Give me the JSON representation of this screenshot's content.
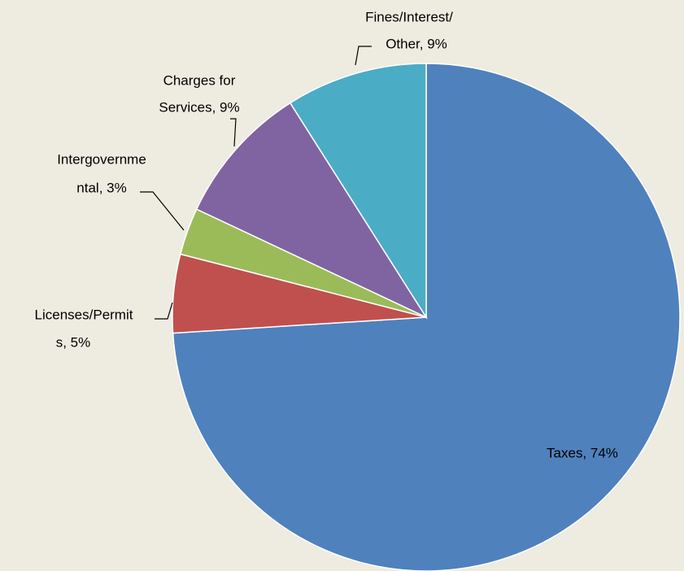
{
  "chart_data": {
    "type": "pie",
    "labels": [
      [
        "Taxes, 74%"
      ],
      [
        "Licenses/Permit",
        "s, 5%"
      ],
      [
        "Intergovernme",
        "ntal, 3%"
      ],
      [
        "Charges for",
        "Services, 9%"
      ],
      [
        "Fines/Interest/",
        "Other, 9%"
      ]
    ],
    "values": [
      74,
      5,
      3,
      9,
      9
    ],
    "colors": [
      "#4f81bd",
      "#c0504d",
      "#9bbb59",
      "#8064a2",
      "#4bacc6"
    ]
  }
}
